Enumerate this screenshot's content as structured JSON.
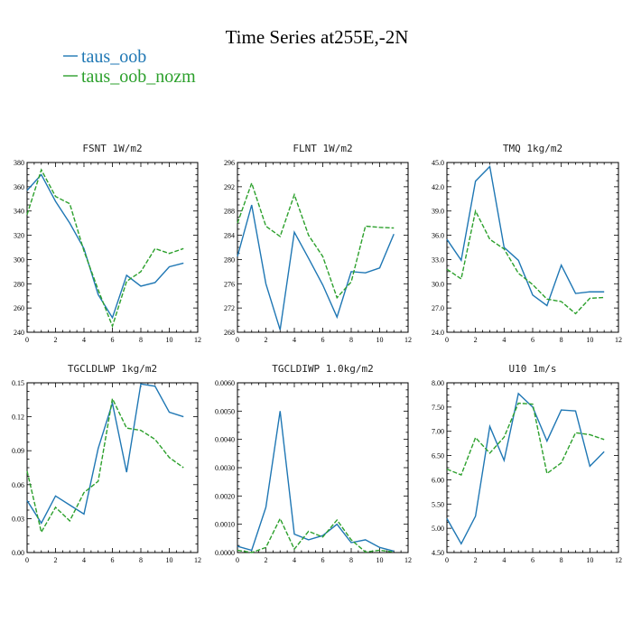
{
  "figure": {
    "title": "Time Series at255E,-2N",
    "legend": [
      {
        "label": "taus_oob",
        "color": "#1f77b4",
        "dash": "solid"
      },
      {
        "label": "taus_oob_nozm",
        "color": "#2ca02c",
        "dash": "dashed"
      }
    ]
  },
  "chart_data": [
    {
      "type": "line",
      "title": "FSNT   1W/m2",
      "xlim": [
        0,
        12
      ],
      "ylim": [
        240,
        380
      ],
      "xticks": [
        "0",
        "2",
        "4",
        "6",
        "8",
        "10",
        "12"
      ],
      "yticks": [
        "240",
        "260",
        "280",
        "300",
        "320",
        "340",
        "360",
        "380"
      ],
      "x": [
        0,
        1,
        2,
        3,
        4,
        5,
        6,
        7,
        8,
        9,
        10,
        11
      ],
      "series": [
        {
          "name": "taus_oob",
          "values": [
            357,
            370,
            348,
            330,
            309,
            271,
            252,
            287,
            278,
            281,
            294,
            297
          ]
        },
        {
          "name": "taus_oob_nozm",
          "values": [
            337,
            374,
            352,
            346,
            307,
            275,
            245,
            282,
            290,
            309,
            305,
            309
          ]
        }
      ]
    },
    {
      "type": "line",
      "title": "FLNT   1W/m2",
      "xlim": [
        0,
        12
      ],
      "ylim": [
        268,
        296
      ],
      "xticks": [
        "0",
        "2",
        "4",
        "6",
        "8",
        "10",
        "12"
      ],
      "yticks": [
        "268",
        "272",
        "276",
        "280",
        "284",
        "288",
        "292",
        "296"
      ],
      "x": [
        0,
        1,
        2,
        3,
        4,
        5,
        6,
        7,
        8,
        9,
        10,
        11
      ],
      "series": [
        {
          "name": "taus_oob",
          "values": [
            280.5,
            289.0,
            276.0,
            268.4,
            284.5,
            280.2,
            275.8,
            270.5,
            278.0,
            277.8,
            278.6,
            284.2
          ]
        },
        {
          "name": "taus_oob_nozm",
          "values": [
            286.0,
            292.6,
            285.5,
            283.8,
            290.7,
            284.0,
            280.5,
            273.7,
            276.3,
            285.5,
            285.3,
            285.2
          ]
        }
      ]
    },
    {
      "type": "line",
      "title": "TMQ   1kg/m2",
      "xlim": [
        0,
        12
      ],
      "ylim": [
        24.0,
        45.0
      ],
      "xticks": [
        "0",
        "2",
        "4",
        "6",
        "8",
        "10",
        "12"
      ],
      "yticks": [
        "24.0",
        "27.0",
        "30.0",
        "33.0",
        "36.0",
        "39.0",
        "42.0",
        "45.0"
      ],
      "x": [
        0,
        1,
        2,
        3,
        4,
        5,
        6,
        7,
        8,
        9,
        10,
        11
      ],
      "series": [
        {
          "name": "taus_oob",
          "values": [
            35.5,
            32.9,
            42.7,
            44.5,
            34.5,
            32.9,
            28.6,
            27.3,
            32.3,
            28.8,
            29.0,
            29.0
          ]
        },
        {
          "name": "taus_oob_nozm",
          "values": [
            31.8,
            30.6,
            39.0,
            35.5,
            34.3,
            31.3,
            29.9,
            28.1,
            27.8,
            26.3,
            28.2,
            28.3
          ]
        }
      ]
    },
    {
      "type": "line",
      "title": "TGCLDLWP   1kg/m2",
      "xlim": [
        0,
        12
      ],
      "ylim": [
        0.0,
        0.15
      ],
      "xticks": [
        "0",
        "2",
        "4",
        "6",
        "8",
        "10",
        "12"
      ],
      "yticks": [
        "0.00",
        "0.03",
        "0.06",
        "0.09",
        "0.12",
        "0.15"
      ],
      "x": [
        0,
        1,
        2,
        3,
        4,
        5,
        6,
        7,
        8,
        9,
        10,
        11
      ],
      "series": [
        {
          "name": "taus_oob",
          "values": [
            0.046,
            0.026,
            0.05,
            0.042,
            0.034,
            0.092,
            0.132,
            0.071,
            0.149,
            0.147,
            0.124,
            0.12
          ]
        },
        {
          "name": "taus_oob_nozm",
          "values": [
            0.072,
            0.018,
            0.04,
            0.028,
            0.053,
            0.063,
            0.136,
            0.11,
            0.108,
            0.1,
            0.084,
            0.075
          ]
        }
      ]
    },
    {
      "type": "line",
      "title": "TGCLDIWP   1.0kg/m2",
      "xlim": [
        0,
        12
      ],
      "ylim": [
        0.0,
        0.006
      ],
      "xticks": [
        "0",
        "2",
        "4",
        "6",
        "8",
        "10",
        "12"
      ],
      "yticks": [
        "0.0000",
        "0.0010",
        "0.0020",
        "0.0030",
        "0.0040",
        "0.0050",
        "0.0060"
      ],
      "x": [
        0,
        1,
        2,
        3,
        4,
        5,
        6,
        7,
        8,
        9,
        10,
        11
      ],
      "series": [
        {
          "name": "taus_oob",
          "values": [
            0.00022,
            8e-05,
            0.0016,
            0.005,
            0.00065,
            0.00045,
            0.0006,
            0.001,
            0.00035,
            0.00045,
            0.00018,
            5e-05
          ]
        },
        {
          "name": "taus_oob_nozm",
          "values": [
            8e-05,
            0.0,
            0.00018,
            0.0012,
            0.00012,
            0.00075,
            0.00055,
            0.00115,
            0.00045,
            2e-05,
            8e-05,
            2e-05
          ]
        }
      ]
    },
    {
      "type": "line",
      "title": "U10   1m/s",
      "xlim": [
        0,
        12
      ],
      "ylim": [
        4.5,
        8.0
      ],
      "xticks": [
        "0",
        "2",
        "4",
        "6",
        "8",
        "10",
        "12"
      ],
      "yticks": [
        "4.50",
        "5.00",
        "5.50",
        "6.00",
        "6.50",
        "7.00",
        "7.50",
        "8.00"
      ],
      "x": [
        0,
        1,
        2,
        3,
        4,
        5,
        6,
        7,
        8,
        9,
        10,
        11
      ],
      "series": [
        {
          "name": "taus_oob",
          "values": [
            5.2,
            4.68,
            5.25,
            7.1,
            6.4,
            7.78,
            7.5,
            6.8,
            7.44,
            7.42,
            6.28,
            6.58
          ]
        },
        {
          "name": "taus_oob_nozm",
          "values": [
            6.22,
            6.1,
            6.87,
            6.55,
            6.88,
            7.58,
            7.56,
            6.13,
            6.35,
            6.97,
            6.93,
            6.83
          ]
        }
      ]
    }
  ]
}
